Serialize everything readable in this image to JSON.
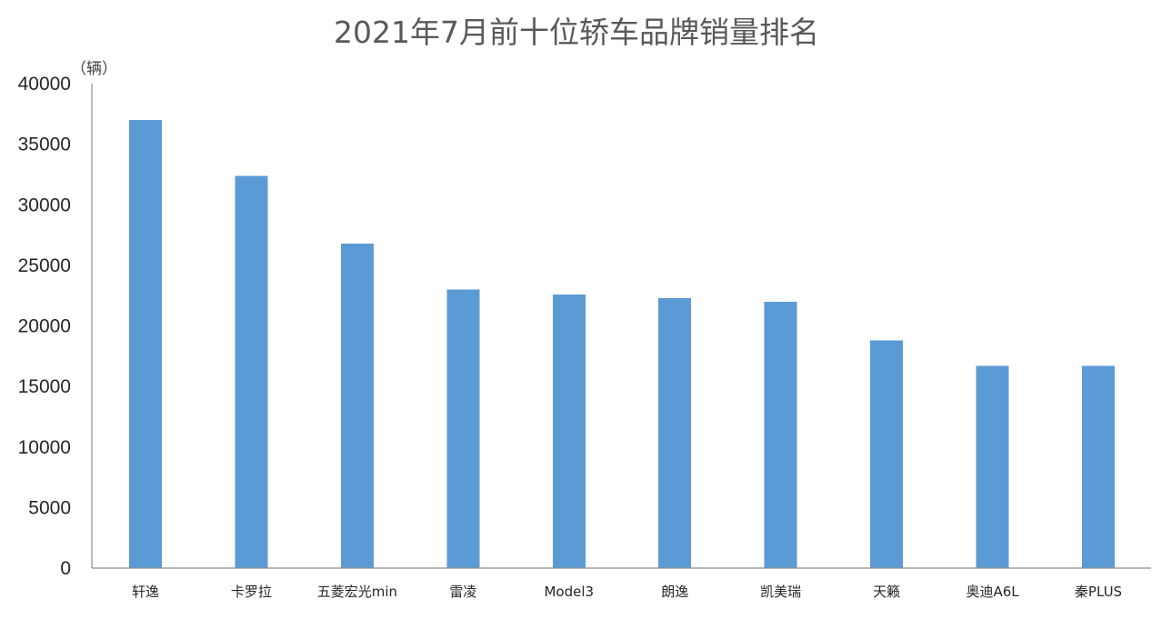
{
  "chart_data": {
    "type": "bar",
    "title": "2021年7月前十位轿车品牌销量排名",
    "ylabel": "（辆）",
    "xlabel": "",
    "categories": [
      "轩逸",
      "卡罗拉",
      "五菱宏光min",
      "雷凌",
      "Model3",
      "朗逸",
      "凯美瑞",
      "天籁",
      "奥迪A6L",
      "秦PLUS"
    ],
    "values": [
      37000,
      32400,
      26800,
      23000,
      22600,
      22300,
      22000,
      18800,
      16700,
      16700
    ],
    "ylim": [
      0,
      40000
    ],
    "yticks": [
      "0",
      "5000",
      "10000",
      "15000",
      "20000",
      "25000",
      "30000",
      "35000",
      "40000"
    ],
    "grid": false,
    "legend": "none",
    "bar_color": "#5b9bd5",
    "axis_color": "#8c8c8c"
  }
}
